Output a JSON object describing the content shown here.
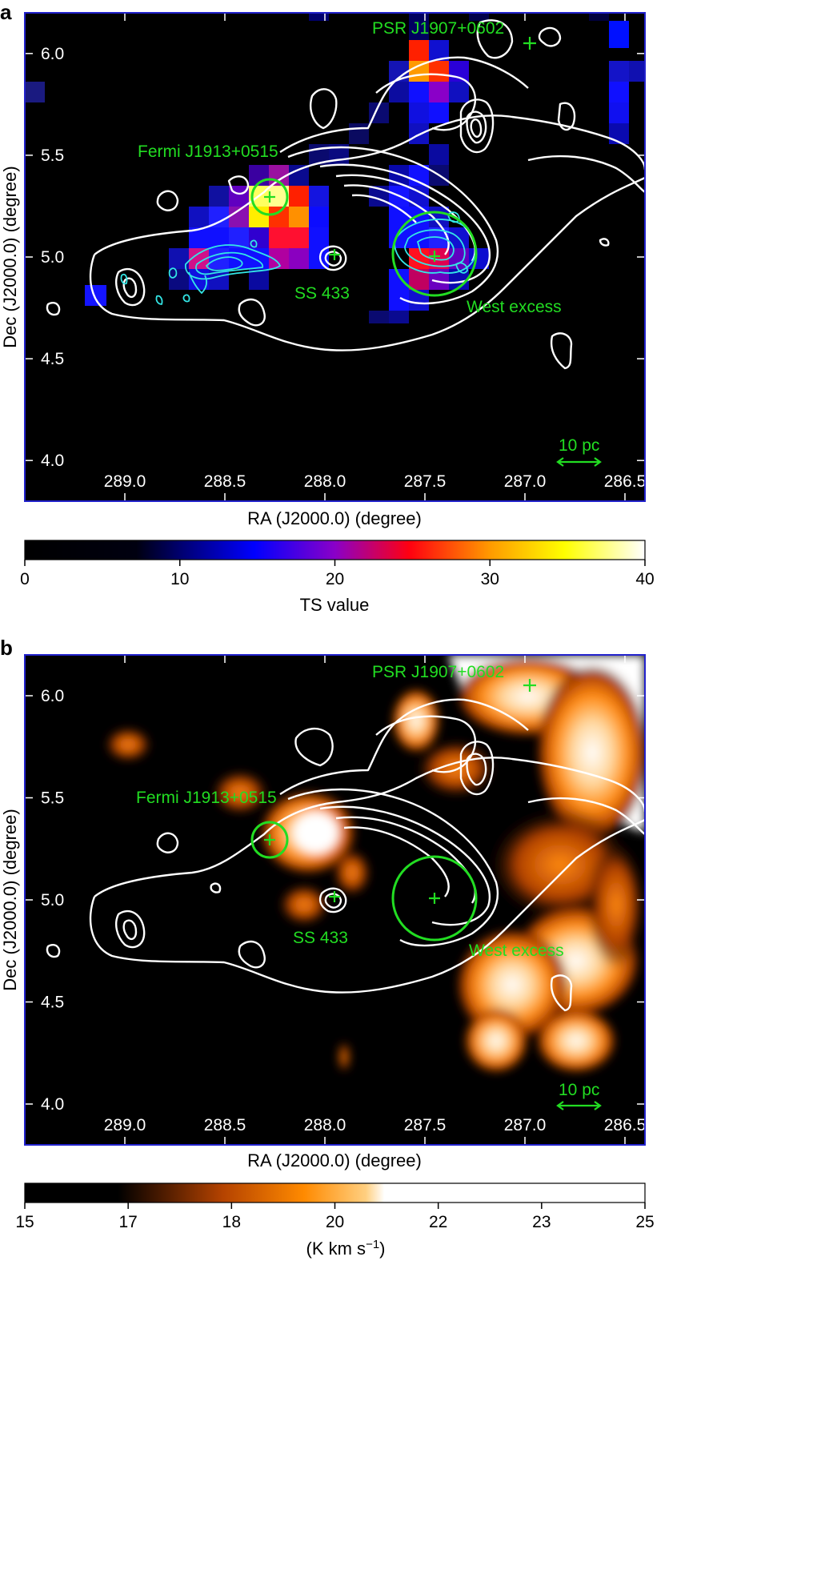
{
  "chart_data": [
    {
      "panel": "a",
      "type": "heatmap",
      "xlabel": "RA (J2000.0) (degree)",
      "ylabel": "Dec (J2000.0) (degree)",
      "xlim": [
        289.5,
        286.4
      ],
      "ylim": [
        3.8,
        6.2
      ],
      "x_ticks": [
        "289.0",
        "288.5",
        "288.0",
        "287.5",
        "287.0",
        "286.5"
      ],
      "x_tick_values": [
        289.0,
        288.5,
        288.0,
        287.5,
        287.0,
        286.5
      ],
      "y_ticks": [
        "4.0",
        "4.5",
        "5.0",
        "5.5",
        "6.0"
      ],
      "y_tick_values": [
        4.0,
        4.5,
        5.0,
        5.5,
        6.0
      ],
      "colorbar": {
        "label": "TS value",
        "range": [
          0,
          40
        ],
        "ticks": [
          "0",
          "10",
          "20",
          "30",
          "40"
        ],
        "tick_values": [
          0,
          10,
          20,
          30,
          40
        ],
        "colormap": "black-blue-purple-red-yellow-white"
      },
      "annotations": [
        {
          "text": "PSR J1907+0602",
          "ra": 287.0,
          "dec": 6.03,
          "marker": "cross"
        },
        {
          "text": "Fermi J1913+0515",
          "ra": 288.27,
          "dec": 5.26,
          "marker": "circle",
          "radius_deg": 0.08
        },
        {
          "text": "SS 433",
          "ra": 287.96,
          "dec": 4.98,
          "marker": "cross"
        },
        {
          "text": "West excess",
          "ra": 287.46,
          "dec": 4.98,
          "marker": "circle",
          "radius_deg": 0.2
        }
      ],
      "scale_bar": {
        "text": "10 pc"
      },
      "ts_peaks": [
        {
          "ra": 288.2,
          "dec": 5.25,
          "ts": 38
        },
        {
          "ra": 288.3,
          "dec": 5.3,
          "ts": 34
        },
        {
          "ra": 287.55,
          "dec": 5.95,
          "ts": 30
        },
        {
          "ra": 287.55,
          "dec": 5.85,
          "ts": 26
        },
        {
          "ra": 288.15,
          "dec": 5.1,
          "ts": 25
        },
        {
          "ra": 287.55,
          "dec": 4.95,
          "ts": 24
        }
      ]
    },
    {
      "panel": "b",
      "type": "heatmap",
      "xlabel": "RA (J2000.0) (degree)",
      "ylabel": "Dec (J2000.0) (degree)",
      "xlim": [
        289.5,
        286.4
      ],
      "ylim": [
        3.8,
        6.2
      ],
      "x_ticks": [
        "289.0",
        "288.5",
        "288.0",
        "287.5",
        "287.0",
        "286.5"
      ],
      "x_tick_values": [
        289.0,
        288.5,
        288.0,
        287.5,
        287.0,
        286.5
      ],
      "y_ticks": [
        "4.0",
        "4.5",
        "5.0",
        "5.5",
        "6.0"
      ],
      "y_tick_values": [
        4.0,
        4.5,
        5.0,
        5.5,
        6.0
      ],
      "colorbar": {
        "label_prefix": "(K km s",
        "label_sup": "−1",
        "label_suffix": ")",
        "range": [
          15,
          25
        ],
        "ticks": [
          "15",
          "17",
          "18",
          "20",
          "22",
          "23",
          "25"
        ],
        "colormap": "black-orange-white"
      },
      "annotations": [
        {
          "text": "PSR J1907+0602",
          "ra": 287.0,
          "dec": 6.03,
          "marker": "cross"
        },
        {
          "text": "Fermi J1913+0515",
          "ra": 288.27,
          "dec": 5.26,
          "marker": "circle",
          "radius_deg": 0.08
        },
        {
          "text": "SS 433",
          "ra": 287.96,
          "dec": 4.98,
          "marker": "cross"
        },
        {
          "text": "West excess",
          "ra": 287.46,
          "dec": 4.98,
          "marker": "circle",
          "radius_deg": 0.2
        }
      ],
      "scale_bar": {
        "text": "10 pc"
      }
    }
  ],
  "colors": {
    "frame": "#2222cc",
    "annotation": "#22dd22",
    "contour_white": "#ffffff",
    "contour_cyan": "#33e6e6"
  }
}
